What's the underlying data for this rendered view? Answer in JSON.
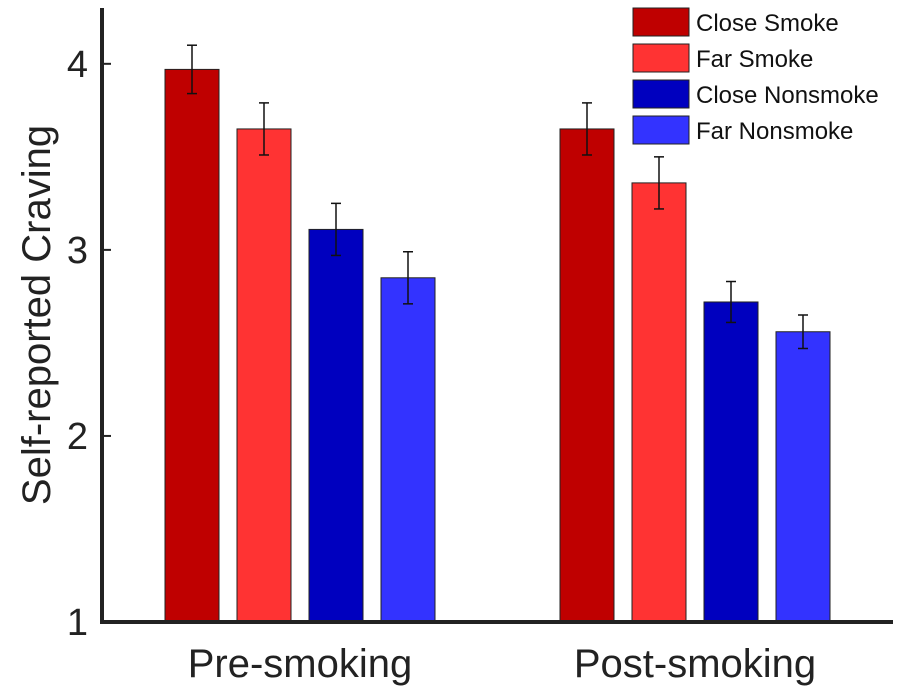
{
  "chart_data": {
    "type": "bar",
    "categories": [
      "Pre-smoking",
      "Post-smoking"
    ],
    "series": [
      {
        "name": "Close Smoke",
        "values": [
          3.97,
          3.65
        ],
        "errors": [
          0.13,
          0.14
        ],
        "color": "#bf0000"
      },
      {
        "name": "Far Smoke",
        "values": [
          3.65,
          3.36
        ],
        "errors": [
          0.14,
          0.14
        ],
        "color": "#ff3333"
      },
      {
        "name": "Close Nonsmoke",
        "values": [
          3.11,
          2.72
        ],
        "errors": [
          0.14,
          0.11
        ],
        "color": "#0000bf"
      },
      {
        "name": "Far Nonsmoke",
        "values": [
          2.85,
          2.56
        ],
        "errors": [
          0.14,
          0.09
        ],
        "color": "#3333ff"
      }
    ],
    "ylabel": "Self-reported Craving",
    "xlabel": "",
    "ylim": [
      1,
      4.3
    ],
    "yticks": [
      "1",
      "2",
      "3",
      "4"
    ],
    "grid": false,
    "legend_position": "top-right"
  }
}
